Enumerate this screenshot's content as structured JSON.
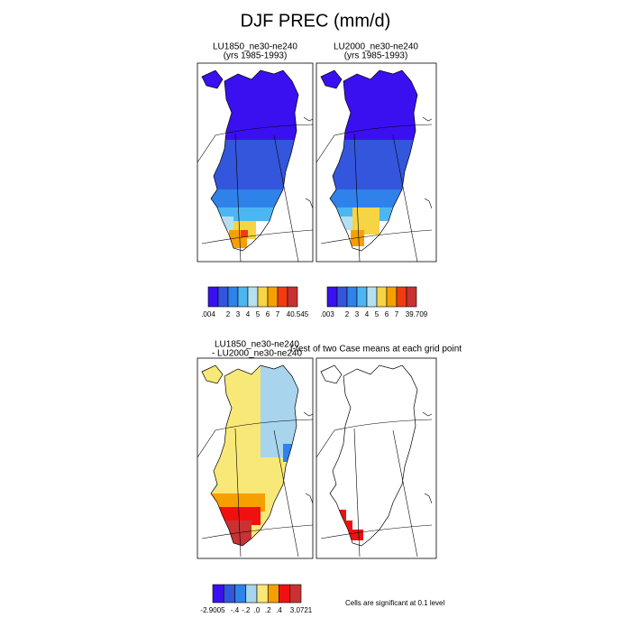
{
  "title": "DJF PREC (mm/d)",
  "panels": [
    {
      "title": "LU1850_ne30-ne240",
      "subtitle": "(yrs 1985-1993)"
    },
    {
      "title": "LU2000_ne30-ne240",
      "subtitle": "(yrs 1985-1993)"
    },
    {
      "title": "LU1850_ne30-ne240",
      "subtitle": "- LU2000_ne30-ne240"
    },
    {
      "title": "t-test of two Case means at each grid point"
    }
  ],
  "colorbars": [
    {
      "colors": [
        "#3a10f0",
        "#3356dc",
        "#2f82ea",
        "#4cb6f2",
        "#b4e0f2",
        "#f6d443",
        "#f6a000",
        "#f03c10",
        "#c83232"
      ],
      "labels": [
        ".004",
        "2",
        "3",
        "4",
        "5",
        "6",
        "7",
        "40.545"
      ]
    },
    {
      "colors": [
        "#3a10f0",
        "#3356dc",
        "#2f82ea",
        "#4cb6f2",
        "#b4e0f2",
        "#f6d443",
        "#f6a000",
        "#f03c10",
        "#c83232"
      ],
      "labels": [
        ".003",
        "2",
        "3",
        "4",
        "5",
        "6",
        "7",
        "39.709"
      ]
    },
    {
      "colors": [
        "#3a10f0",
        "#3356dc",
        "#2f82ea",
        "#a8d4ee",
        "#f8e878",
        "#f6a000",
        "#f01010",
        "#c83232"
      ],
      "labels": [
        "-2.9005",
        "-.4",
        "-.2",
        ".0",
        ".2",
        ".4",
        "3.0721"
      ]
    }
  ],
  "note": "Cells are significant at 0.1 level"
}
